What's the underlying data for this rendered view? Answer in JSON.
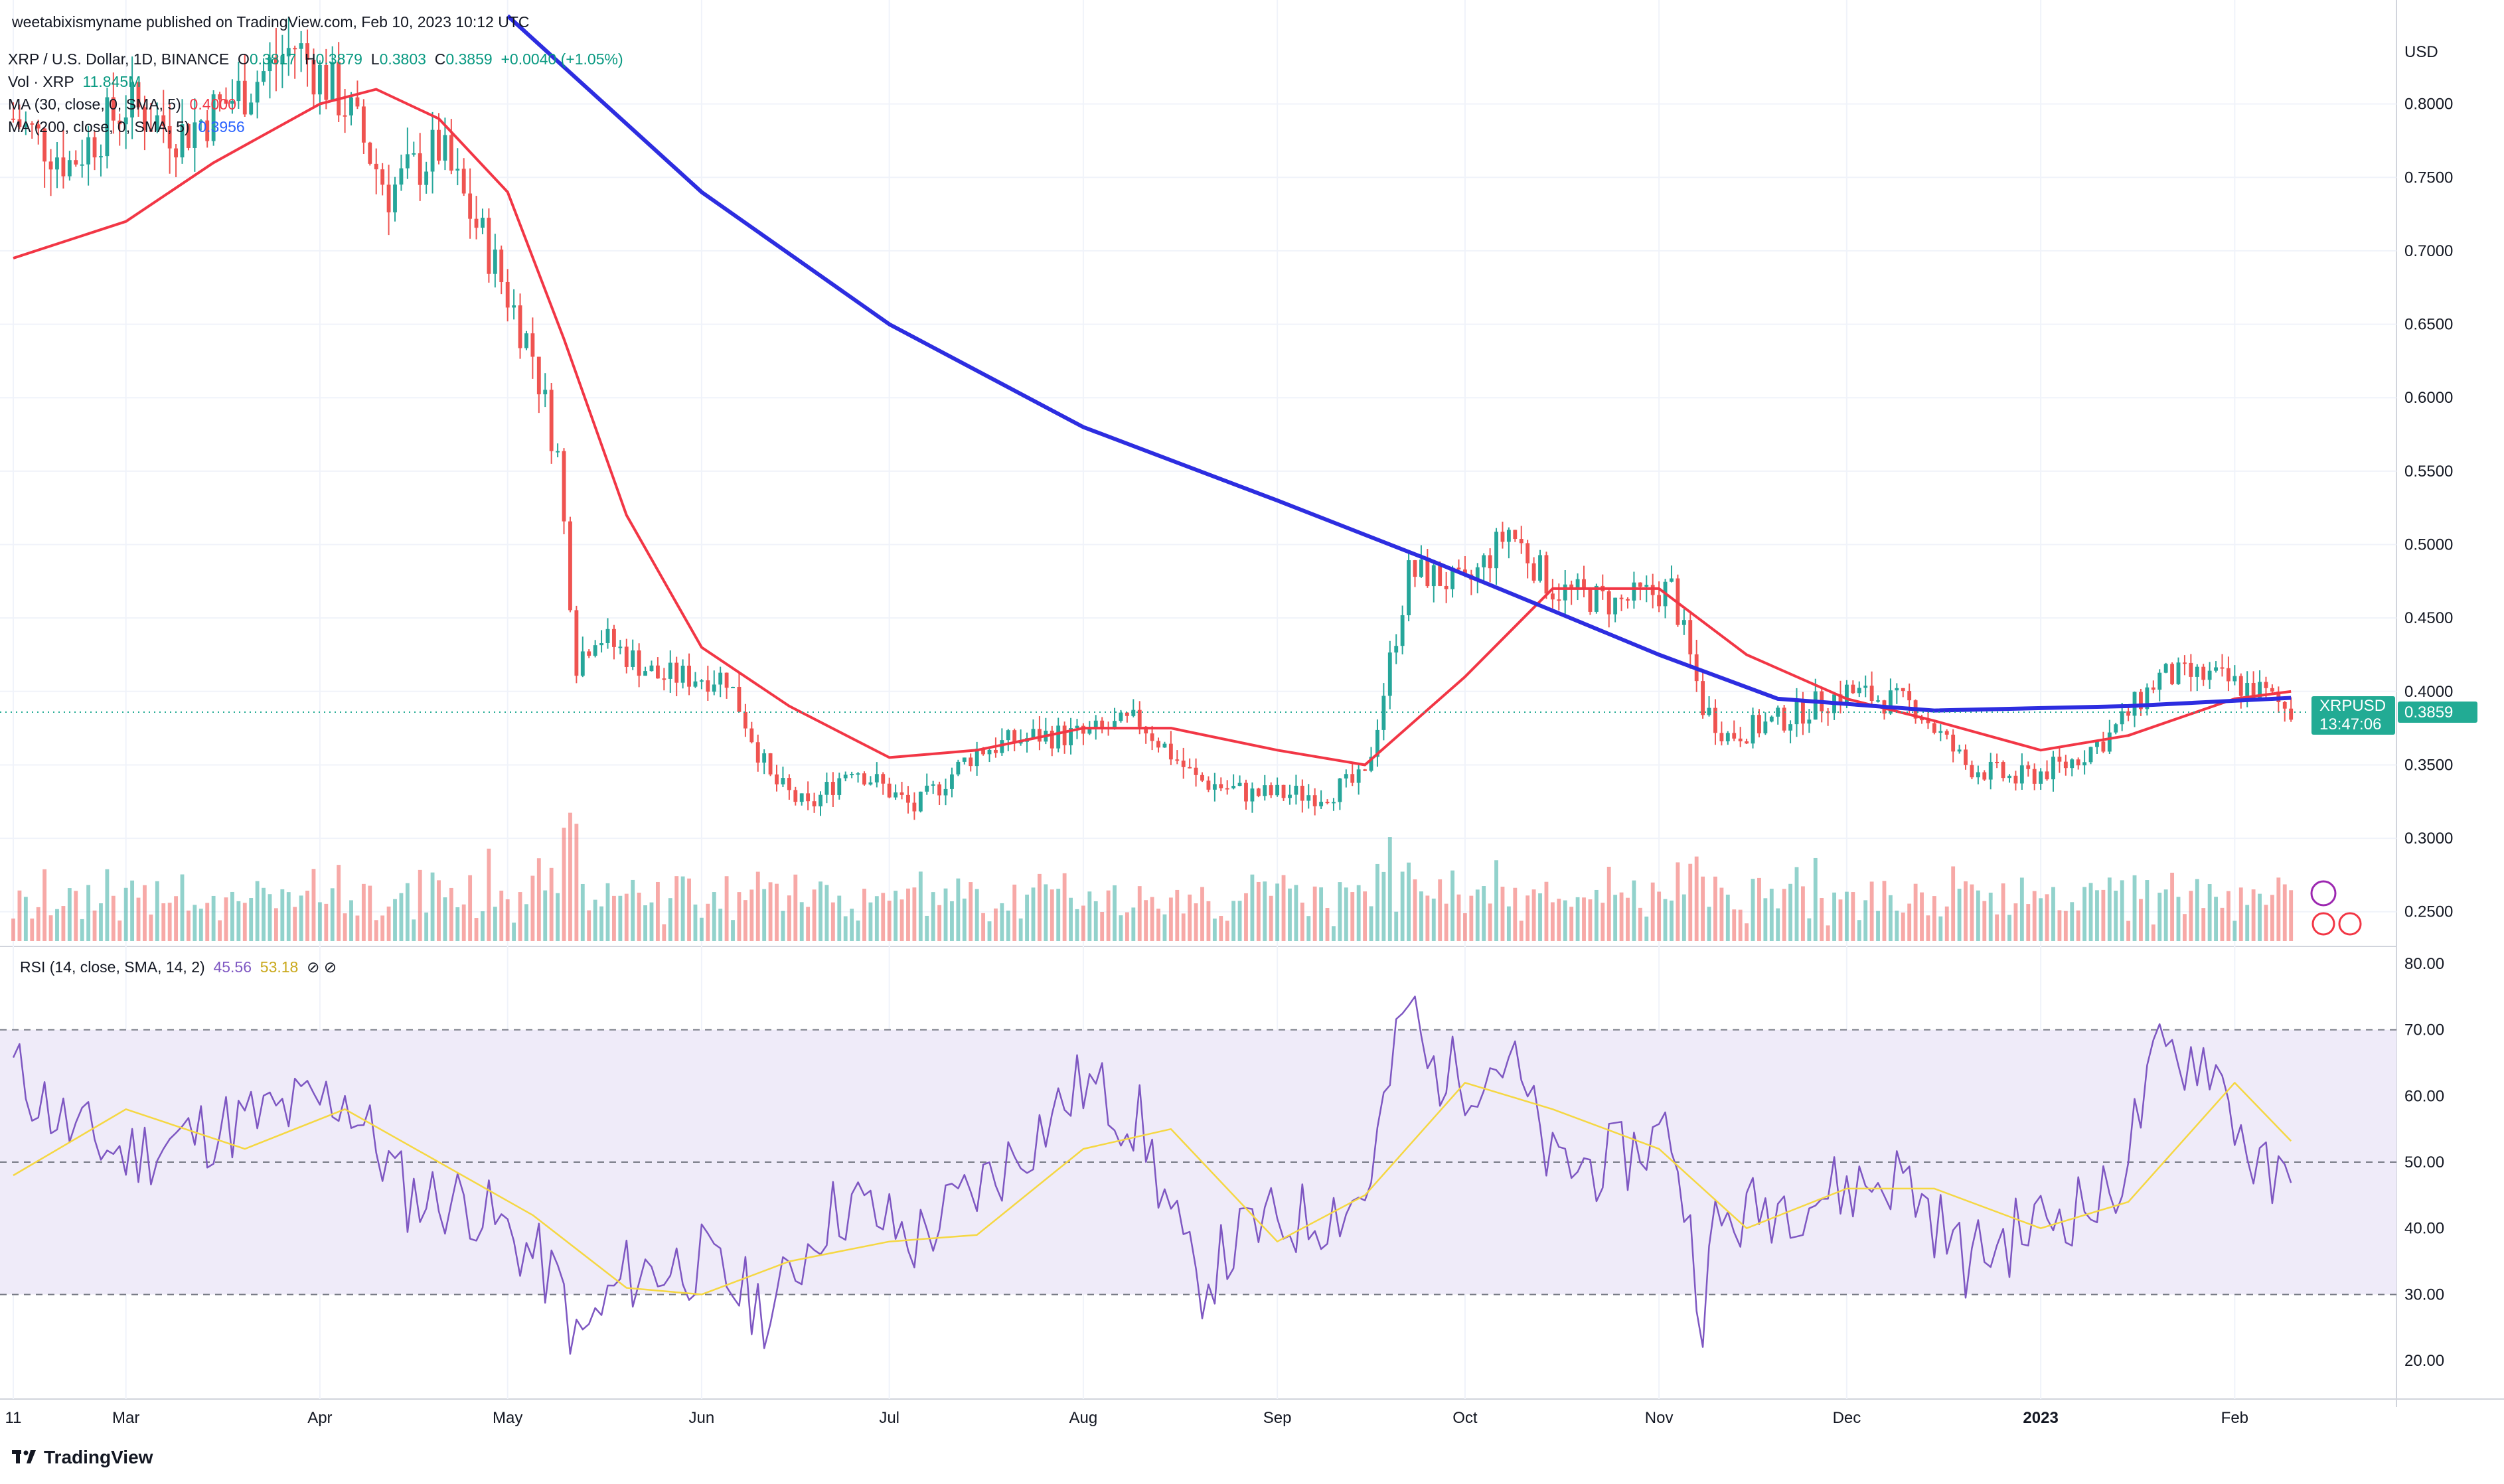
{
  "header": {
    "publisher": "weetabixismyname published on TradingView.com, Feb 10, 2023 10:12 UTC"
  },
  "legend": {
    "symbol": "XRP / U.S. Dollar, 1D, BINANCE",
    "o_label": "O",
    "o_value": "0.3817",
    "h_label": "H",
    "h_value": "0.3879",
    "l_label": "L",
    "l_value": "0.3803",
    "c_label": "C",
    "c_value": "0.3859",
    "change": "+0.0040 (+1.05%)",
    "vol_label": "Vol · XRP",
    "vol_value": "11.845M",
    "ma30_label": "MA (30, close, 0, SMA, 5)",
    "ma30_value": "0.4000",
    "ma200_label": "MA (200, close, 0, SMA, 5)",
    "ma200_value": "0.3956",
    "rsi_label": "RSI (14, close, SMA, 14, 2)",
    "rsi_value": "45.56",
    "rsi_ma_value": "53.18"
  },
  "price_badge": {
    "symbol": "XRPUSD",
    "price": "0.3859",
    "countdown": "13:47:06"
  },
  "axis": {
    "currency": "USD"
  },
  "brand": {
    "name": "TradingView"
  },
  "colors": {
    "up": "#26a69a",
    "down": "#ef5350",
    "ma30": "#f23645",
    "ma200": "#2d2de0",
    "rsi": "#7e57c2",
    "rsi_ma": "#f5d742",
    "rsi_band": "#efebf9",
    "badge": "#22ab94"
  },
  "chart_data": [
    {
      "type": "line",
      "title": "XRP / U.S. Dollar, 1D, BINANCE",
      "ylabel": "USD",
      "y_ticks": [
        "0.2500",
        "0.3000",
        "0.3500",
        "0.4000",
        "0.4500",
        "0.5000",
        "0.5500",
        "0.6000",
        "0.6500",
        "0.7000",
        "0.7500",
        "0.8000"
      ],
      "ylim": [
        0.23,
        0.85
      ],
      "x_ticks": [
        "11",
        "Mar",
        "Apr",
        "May",
        "Jun",
        "Jul",
        "Aug",
        "Sep",
        "Oct",
        "Nov",
        "Dec",
        "2023",
        "Feb"
      ],
      "x_tick_dates": [
        "2022-02-11",
        "2022-03-01",
        "2022-04-01",
        "2022-05-01",
        "2022-06-01",
        "2022-07-01",
        "2022-08-01",
        "2022-09-01",
        "2022-10-01",
        "2022-11-01",
        "2022-12-01",
        "2023-01-01",
        "2023-02-01"
      ],
      "series": [
        {
          "name": "XRPUSD",
          "x": [
            "2022-02-11",
            "2022-02-20",
            "2022-03-01",
            "2022-03-10",
            "2022-03-20",
            "2022-03-28",
            "2022-04-05",
            "2022-04-12",
            "2022-04-20",
            "2022-04-28",
            "2022-05-05",
            "2022-05-09",
            "2022-05-12",
            "2022-05-15",
            "2022-05-25",
            "2022-06-05",
            "2022-06-12",
            "2022-06-18",
            "2022-06-25",
            "2022-07-05",
            "2022-07-15",
            "2022-07-25",
            "2022-08-01",
            "2022-08-10",
            "2022-08-19",
            "2022-08-28",
            "2022-09-08",
            "2022-09-15",
            "2022-09-22",
            "2022-09-25",
            "2022-10-01",
            "2022-10-08",
            "2022-10-15",
            "2022-10-25",
            "2022-11-03",
            "2022-11-08",
            "2022-11-12",
            "2022-11-20",
            "2022-12-01",
            "2022-12-12",
            "2022-12-20",
            "2022-12-28",
            "2023-01-05",
            "2023-01-12",
            "2023-01-20",
            "2023-01-28",
            "2023-02-05",
            "2023-02-10"
          ],
          "values": [
            0.79,
            0.76,
            0.8,
            0.78,
            0.81,
            0.84,
            0.8,
            0.74,
            0.77,
            0.7,
            0.63,
            0.56,
            0.42,
            0.44,
            0.41,
            0.41,
            0.34,
            0.32,
            0.35,
            0.32,
            0.36,
            0.37,
            0.37,
            0.38,
            0.34,
            0.33,
            0.33,
            0.34,
            0.48,
            0.48,
            0.47,
            0.51,
            0.47,
            0.46,
            0.47,
            0.39,
            0.37,
            0.38,
            0.4,
            0.39,
            0.35,
            0.34,
            0.35,
            0.37,
            0.41,
            0.41,
            0.4,
            0.3859
          ]
        },
        {
          "name": "MA (30, close, 0, SMA, 5)",
          "x": [
            "2022-02-11",
            "2022-03-01",
            "2022-03-15",
            "2022-04-01",
            "2022-04-10",
            "2022-04-20",
            "2022-05-01",
            "2022-05-10",
            "2022-05-20",
            "2022-06-01",
            "2022-06-15",
            "2022-07-01",
            "2022-07-15",
            "2022-08-01",
            "2022-08-15",
            "2022-09-01",
            "2022-09-15",
            "2022-10-01",
            "2022-10-15",
            "2022-11-01",
            "2022-11-15",
            "2022-12-01",
            "2022-12-15",
            "2023-01-01",
            "2023-01-15",
            "2023-02-01",
            "2023-02-10"
          ],
          "values": [
            0.695,
            0.72,
            0.76,
            0.8,
            0.81,
            0.79,
            0.74,
            0.64,
            0.52,
            0.43,
            0.39,
            0.355,
            0.36,
            0.375,
            0.375,
            0.36,
            0.35,
            0.41,
            0.47,
            0.47,
            0.425,
            0.395,
            0.38,
            0.36,
            0.37,
            0.395,
            0.4
          ]
        },
        {
          "name": "MA (200, close, 0, SMA, 5)",
          "x": [
            "2022-05-01",
            "2022-06-01",
            "2022-07-01",
            "2022-08-01",
            "2022-09-01",
            "2022-09-25",
            "2022-10-15",
            "2022-11-01",
            "2022-11-20",
            "2022-12-15",
            "2023-01-15",
            "2023-02-10"
          ],
          "values": [
            0.86,
            0.74,
            0.65,
            0.58,
            0.53,
            0.49,
            0.455,
            0.425,
            0.395,
            0.387,
            0.39,
            0.3956
          ]
        }
      ]
    },
    {
      "type": "line",
      "title": "RSI (14, close, SMA, 14, 2)",
      "y_ticks": [
        "20.00",
        "30.00",
        "40.00",
        "50.00",
        "60.00",
        "70.00",
        "80.00"
      ],
      "ylim": [
        15,
        82
      ],
      "bands": [
        30,
        70
      ],
      "series": [
        {
          "name": "RSI",
          "x": [
            "2022-02-11",
            "2022-02-20",
            "2022-03-01",
            "2022-03-15",
            "2022-03-28",
            "2022-04-05",
            "2022-04-15",
            "2022-04-25",
            "2022-05-05",
            "2022-05-10",
            "2022-05-12",
            "2022-05-20",
            "2022-06-01",
            "2022-06-12",
            "2022-06-20",
            "2022-06-25",
            "2022-07-05",
            "2022-07-20",
            "2022-08-01",
            "2022-08-10",
            "2022-08-19",
            "2022-08-28",
            "2022-09-08",
            "2022-09-15",
            "2022-09-22",
            "2022-09-25",
            "2022-10-01",
            "2022-10-08",
            "2022-10-15",
            "2022-10-25",
            "2022-11-03",
            "2022-11-08",
            "2022-11-10",
            "2022-11-20",
            "2022-12-01",
            "2022-12-10",
            "2022-12-20",
            "2022-12-28",
            "2023-01-05",
            "2023-01-12",
            "2023-01-20",
            "2023-01-28",
            "2023-02-05",
            "2023-02-10"
          ],
          "values": [
            64,
            55,
            51,
            55,
            58,
            60,
            45,
            44,
            36,
            30,
            22,
            33,
            35,
            27,
            41,
            44,
            38,
            50,
            62,
            56,
            31,
            40,
            42,
            45,
            75,
            64,
            63,
            66,
            49,
            50,
            55,
            28,
            40,
            44,
            46,
            48,
            35,
            39,
            43,
            44,
            66,
            66,
            48,
            45.56
          ]
        },
        {
          "name": "RSI-based MA",
          "x": [
            "2022-02-11",
            "2022-03-01",
            "2022-03-20",
            "2022-04-05",
            "2022-04-20",
            "2022-05-05",
            "2022-05-20",
            "2022-06-01",
            "2022-06-15",
            "2022-07-01",
            "2022-07-15",
            "2022-08-01",
            "2022-08-15",
            "2022-09-01",
            "2022-09-15",
            "2022-10-01",
            "2022-10-15",
            "2022-11-01",
            "2022-11-15",
            "2022-12-01",
            "2022-12-15",
            "2023-01-01",
            "2023-01-15",
            "2023-02-01",
            "2023-02-10"
          ],
          "values": [
            48,
            58,
            52,
            58,
            50,
            42,
            31,
            30,
            35,
            38,
            39,
            52,
            55,
            38,
            45,
            62,
            58,
            52,
            40,
            46,
            46,
            40,
            44,
            62,
            53.18
          ]
        }
      ]
    }
  ]
}
